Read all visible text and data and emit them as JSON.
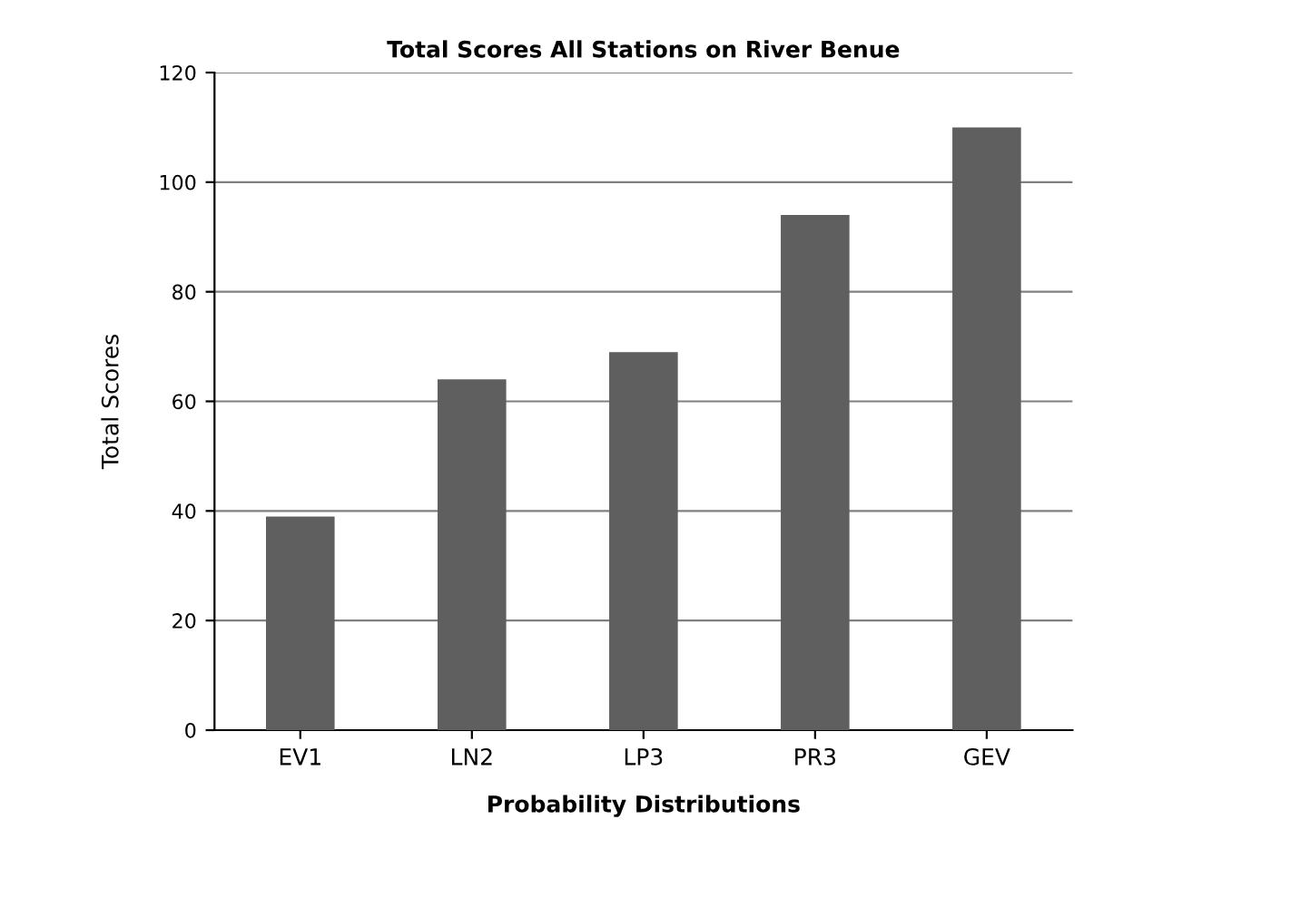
{
  "chart_data": {
    "type": "bar",
    "title": "Total Scores All Stations on River Benue",
    "xlabel": "Probability Distributions",
    "ylabel": "Total Scores",
    "categories": [
      "EV1",
      "LN2",
      "LP3",
      "PR3",
      "GEV"
    ],
    "values": [
      39,
      64,
      69,
      94,
      110
    ],
    "color": "#5f5f5f",
    "ylim": [
      0,
      120
    ],
    "yticks": [
      0,
      20,
      40,
      60,
      80,
      100,
      120
    ],
    "grid": "y",
    "legend": false
  }
}
